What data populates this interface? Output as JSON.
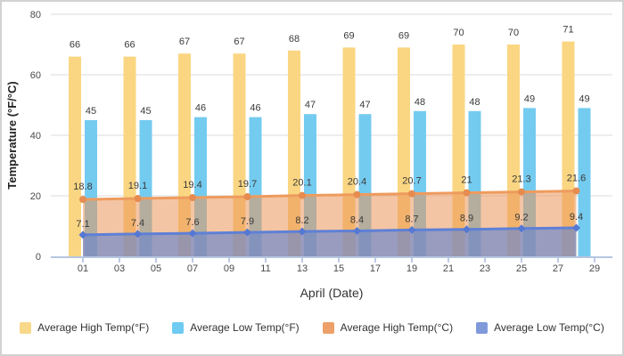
{
  "chart_data": {
    "type": "bar",
    "title": "",
    "x_axis": {
      "label": "April (Date)",
      "tick_labels": [
        "01",
        "03",
        "05",
        "07",
        "09",
        "11",
        "13",
        "15",
        "17",
        "19",
        "21",
        "23",
        "25",
        "27",
        "29"
      ],
      "tick_dates": [
        1,
        3,
        5,
        7,
        9,
        11,
        13,
        15,
        17,
        19,
        21,
        23,
        25,
        27,
        29
      ]
    },
    "y_axis": {
      "label": "Temperature (°F/°C)",
      "ticks": [
        0,
        20,
        40,
        60,
        80
      ],
      "range": [
        0,
        80
      ]
    },
    "dates": [
      1,
      4,
      7,
      10,
      13,
      16,
      19,
      22,
      25,
      28
    ],
    "series": [
      {
        "name": "Average High Temp(°F)",
        "kind": "bar",
        "color": "#FAD682",
        "legend_color": "#F8D88A",
        "values": [
          66,
          66,
          67,
          67,
          68,
          69,
          69,
          70,
          70,
          71
        ]
      },
      {
        "name": "Average Low Temp(°F)",
        "kind": "bar",
        "color": "#74CBF0",
        "legend_color": "#6FCBF2",
        "values": [
          45,
          45,
          46,
          46,
          47,
          47,
          48,
          48,
          49,
          49
        ]
      },
      {
        "name": "Average High Temp(°C)",
        "kind": "area-line",
        "line_color": "#EE9B5E",
        "marker_color": "#E68C50",
        "fill_color": "rgba(235,150,90,0.55)",
        "legend_color": "#EDA069",
        "marker": "circle",
        "values": [
          18.8,
          19.1,
          19.4,
          19.7,
          20.1,
          20.4,
          20.7,
          21,
          21.3,
          21.6
        ]
      },
      {
        "name": "Average Low Temp(°C)",
        "kind": "area-line",
        "line_color": "#5E80D6",
        "marker_color": "#5578D4",
        "fill_color": "rgba(105,133,205,0.65)",
        "legend_color": "#7F99DB",
        "marker": "diamond",
        "values": [
          7.1,
          7.4,
          7.6,
          7.9,
          8.2,
          8.4,
          8.7,
          8.9,
          9.2,
          9.4
        ]
      }
    ],
    "legend_position": "bottom",
    "grid": true,
    "axis_line_color": "#B7C5E0",
    "tick_mark_color": "#7D96CC",
    "gridline_color": "#DBDBDB"
  }
}
